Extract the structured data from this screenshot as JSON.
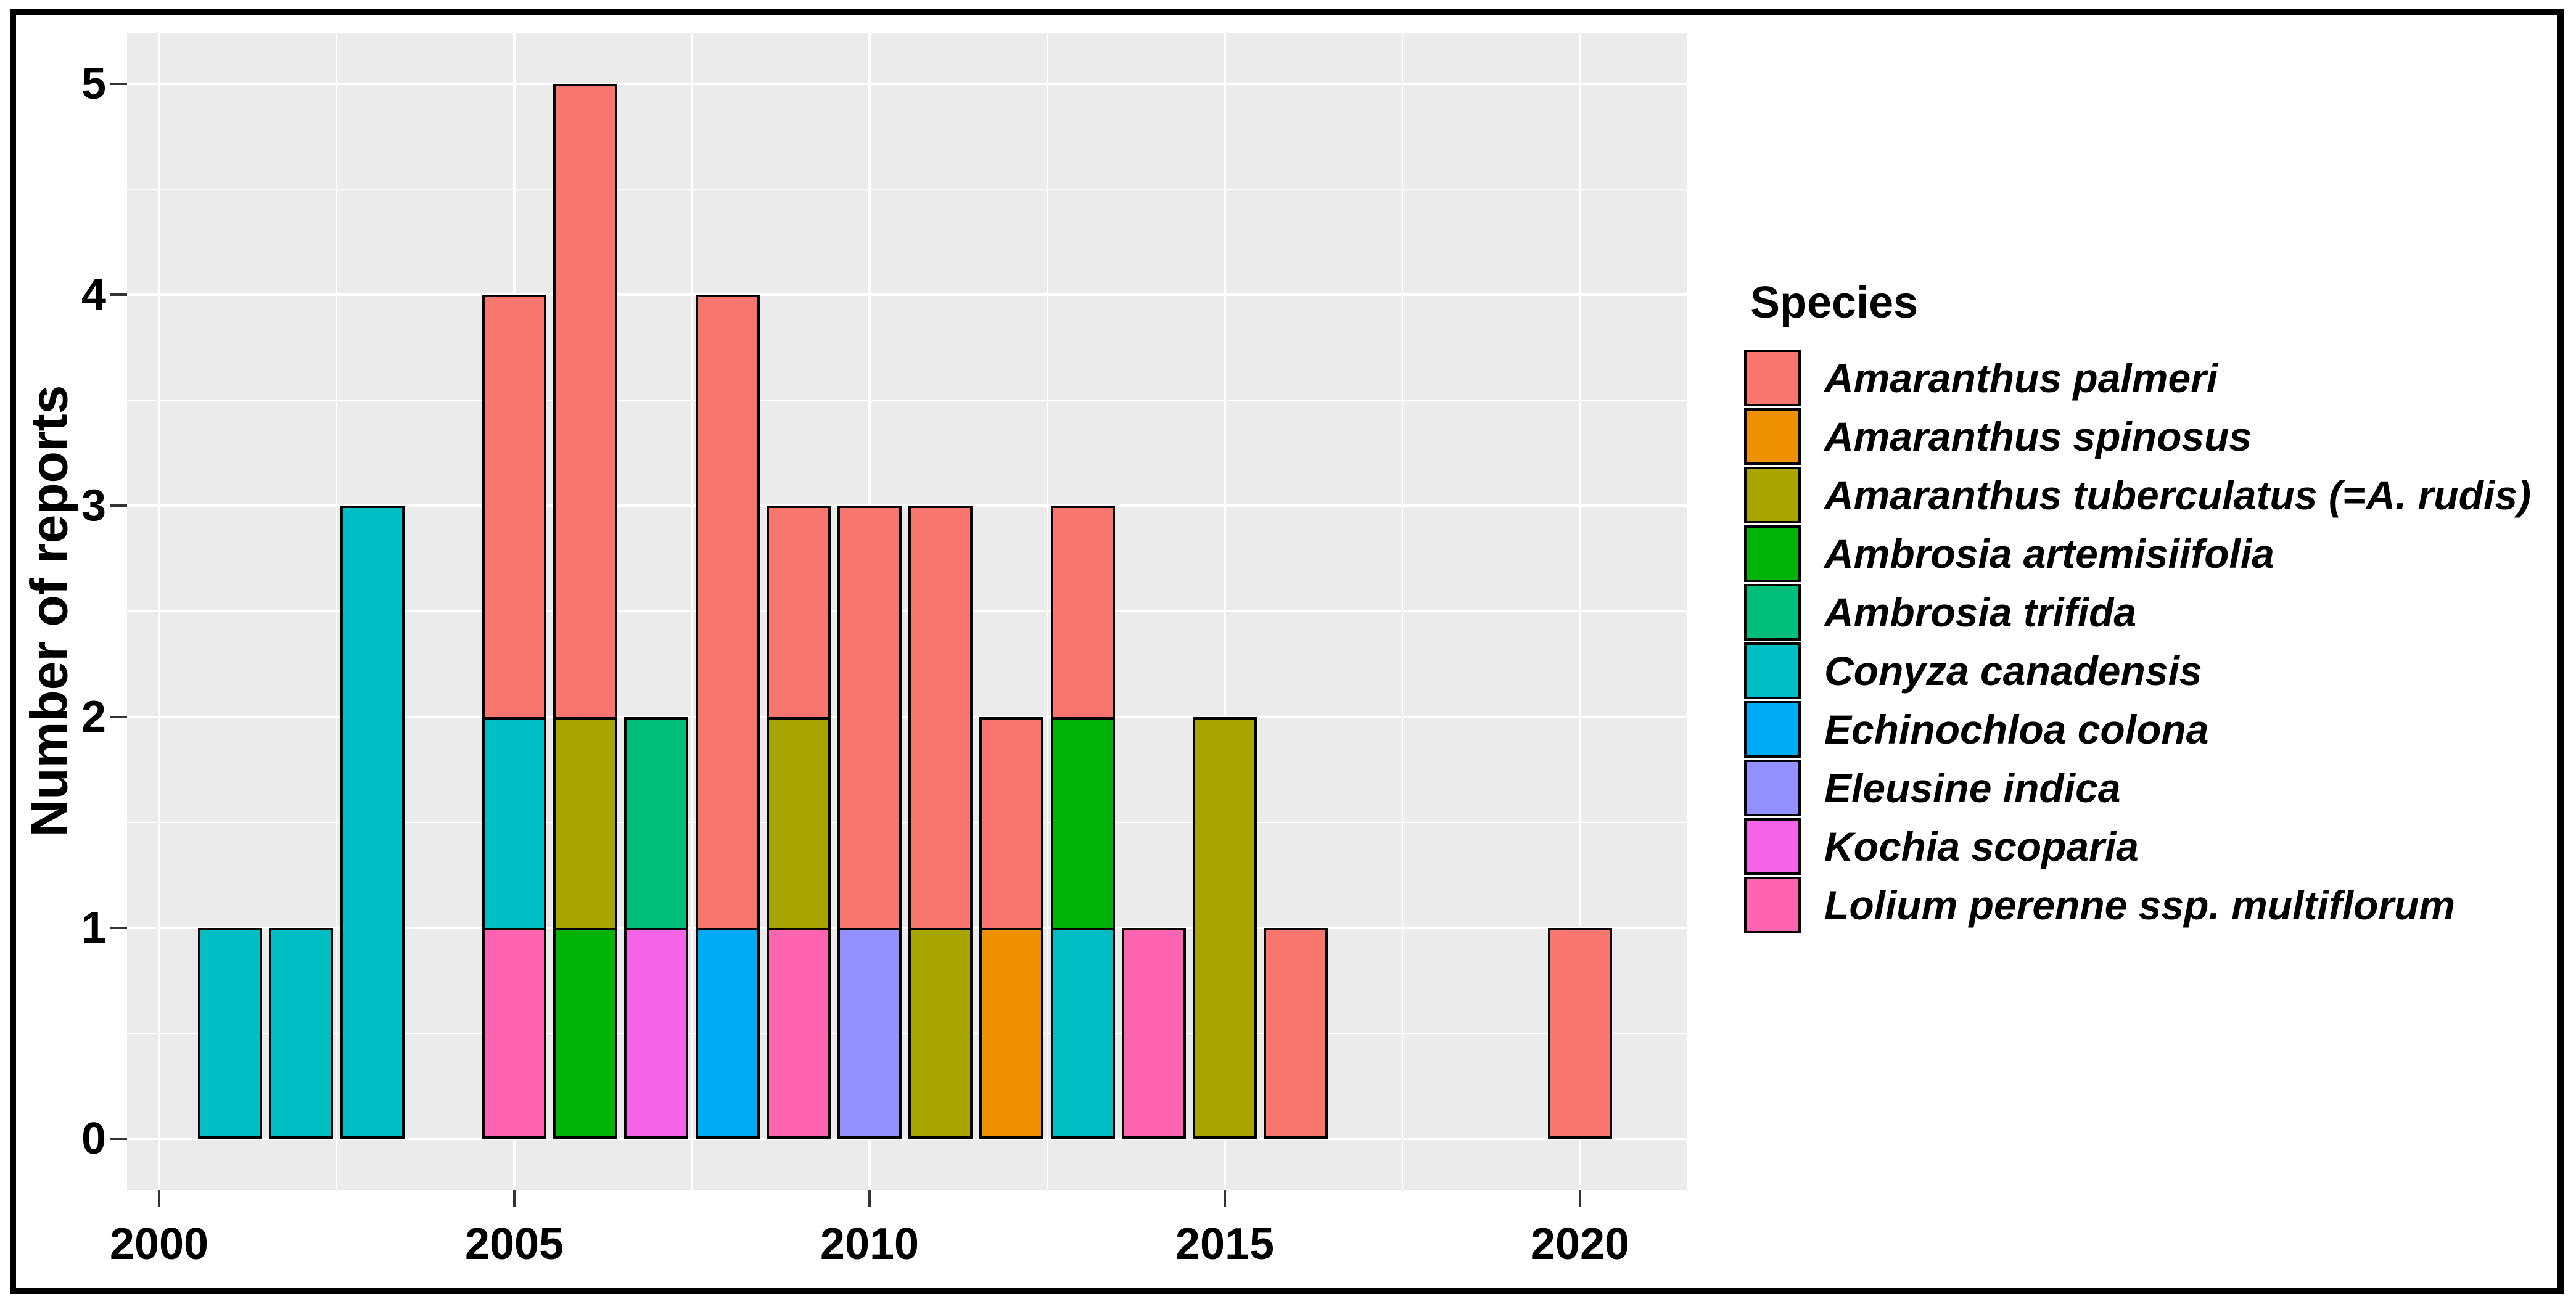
{
  "figure": {
    "background": "#FFFFFF",
    "outer_border_color": "#000000",
    "panel_background": "#EBEBEB",
    "gridline_color": "#FFFFFF",
    "bar_outline_color": "#000000",
    "tick_color": "#333333"
  },
  "y_axis": {
    "title": "Number of reports",
    "tick_labels": [
      "0",
      "1",
      "2",
      "3",
      "4",
      "5"
    ]
  },
  "x_axis": {
    "title": "",
    "tick_labels": [
      "2000",
      "2005",
      "2010",
      "2015",
      "2020"
    ]
  },
  "legend": {
    "title": "Species",
    "items": [
      {
        "label": "Amaranthus palmeri",
        "color": "#F8766D"
      },
      {
        "label": "Amaranthus spinosus",
        "color": "#EE9100"
      },
      {
        "label": "Amaranthus tuberculatus (=A. rudis)",
        "color": "#A8A400"
      },
      {
        "label": "Ambrosia artemisiifolia",
        "color": "#00B307"
      },
      {
        "label": "Ambrosia trifida",
        "color": "#00BF7D"
      },
      {
        "label": "Conyza canadensis",
        "color": "#00BFC4"
      },
      {
        "label": "Echinochloa colona",
        "color": "#00ABF6"
      },
      {
        "label": "Eleusine indica",
        "color": "#9590FF"
      },
      {
        "label": "Kochia scoparia",
        "color": "#F564E8"
      },
      {
        "label": "Lolium perenne ssp. multiflorum",
        "color": "#FF64B0"
      }
    ]
  },
  "chart_data": {
    "type": "bar",
    "stacked": true,
    "title": "",
    "xlabel": "",
    "ylabel": "Number of reports",
    "xlim": [
      1999.5,
      2021.5
    ],
    "ylim": [
      0,
      5
    ],
    "x_ticks": [
      2000,
      2005,
      2010,
      2015,
      2020
    ],
    "x_minor_ticks": [
      2002.5,
      2007.5,
      2012.5,
      2017.5
    ],
    "y_ticks": [
      0,
      1,
      2,
      3,
      4,
      5
    ],
    "y_minor_ticks": [
      0.5,
      1.5,
      2.5,
      3.5,
      4.5
    ],
    "grid": true,
    "legend_position": "right",
    "legend_title": "Species",
    "bar_width_years": 0.9,
    "species_colors": {
      "Amaranthus palmeri": "#F8766D",
      "Amaranthus spinosus": "#EE9100",
      "Amaranthus tuberculatus (=A. rudis)": "#A8A400",
      "Ambrosia artemisiifolia": "#00B307",
      "Ambrosia trifida": "#00BF7D",
      "Conyza canadensis": "#00BFC4",
      "Echinochloa colona": "#00ABF6",
      "Eleusine indica": "#9590FF",
      "Kochia scoparia": "#F564E8",
      "Lolium perenne ssp. multiflorum": "#FF64B0"
    },
    "bars": [
      {
        "year": 2001,
        "total": 1,
        "segments": [
          {
            "species": "Conyza canadensis",
            "value": 1
          }
        ]
      },
      {
        "year": 2002,
        "total": 1,
        "segments": [
          {
            "species": "Conyza canadensis",
            "value": 1
          }
        ]
      },
      {
        "year": 2003,
        "total": 3,
        "segments": [
          {
            "species": "Conyza canadensis",
            "value": 3
          }
        ]
      },
      {
        "year": 2005,
        "total": 4,
        "segments": [
          {
            "species": "Lolium perenne ssp. multiflorum",
            "value": 1
          },
          {
            "species": "Conyza canadensis",
            "value": 1
          },
          {
            "species": "Amaranthus palmeri",
            "value": 2
          }
        ]
      },
      {
        "year": 2006,
        "total": 5,
        "segments": [
          {
            "species": "Ambrosia artemisiifolia",
            "value": 1
          },
          {
            "species": "Amaranthus tuberculatus (=A. rudis)",
            "value": 1
          },
          {
            "species": "Amaranthus palmeri",
            "value": 3
          }
        ]
      },
      {
        "year": 2007,
        "total": 2,
        "segments": [
          {
            "species": "Kochia scoparia",
            "value": 1
          },
          {
            "species": "Ambrosia trifida",
            "value": 1
          }
        ]
      },
      {
        "year": 2008,
        "total": 4,
        "segments": [
          {
            "species": "Echinochloa colona",
            "value": 1
          },
          {
            "species": "Amaranthus palmeri",
            "value": 3
          }
        ]
      },
      {
        "year": 2009,
        "total": 3,
        "segments": [
          {
            "species": "Lolium perenne ssp. multiflorum",
            "value": 1
          },
          {
            "species": "Amaranthus tuberculatus (=A. rudis)",
            "value": 1
          },
          {
            "species": "Amaranthus palmeri",
            "value": 1
          }
        ]
      },
      {
        "year": 2010,
        "total": 3,
        "segments": [
          {
            "species": "Eleusine indica",
            "value": 1
          },
          {
            "species": "Amaranthus palmeri",
            "value": 2
          }
        ]
      },
      {
        "year": 2011,
        "total": 3,
        "segments": [
          {
            "species": "Amaranthus tuberculatus (=A. rudis)",
            "value": 1
          },
          {
            "species": "Amaranthus palmeri",
            "value": 2
          }
        ]
      },
      {
        "year": 2012,
        "total": 2,
        "segments": [
          {
            "species": "Amaranthus spinosus",
            "value": 1
          },
          {
            "species": "Amaranthus palmeri",
            "value": 1
          }
        ]
      },
      {
        "year": 2013,
        "total": 3,
        "segments": [
          {
            "species": "Conyza canadensis",
            "value": 1
          },
          {
            "species": "Ambrosia artemisiifolia",
            "value": 1
          },
          {
            "species": "Amaranthus palmeri",
            "value": 1
          }
        ]
      },
      {
        "year": 2014,
        "total": 1,
        "segments": [
          {
            "species": "Lolium perenne ssp. multiflorum",
            "value": 1
          }
        ]
      },
      {
        "year": 2015,
        "total": 2,
        "segments": [
          {
            "species": "Amaranthus tuberculatus (=A. rudis)",
            "value": 2
          }
        ]
      },
      {
        "year": 2016,
        "total": 1,
        "segments": [
          {
            "species": "Amaranthus palmeri",
            "value": 1
          }
        ]
      },
      {
        "year": 2020,
        "total": 1,
        "segments": [
          {
            "species": "Amaranthus palmeri",
            "value": 1
          }
        ]
      }
    ]
  }
}
